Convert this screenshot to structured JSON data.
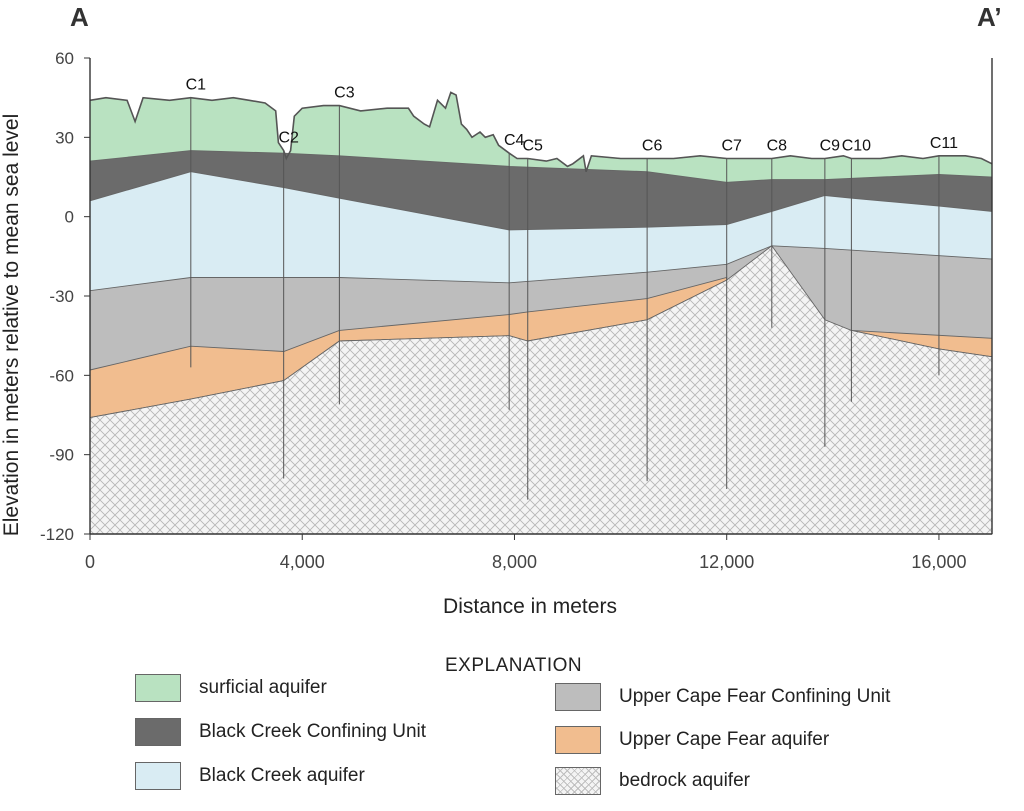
{
  "chart_data": {
    "type": "cross-section",
    "title_left": "A",
    "title_right": "A’",
    "xlabel": "Distance in meters",
    "ylabel": "Elevation in meters relative to mean sea level",
    "xlim": [
      0,
      17000
    ],
    "ylim": [
      -120,
      60
    ],
    "x_ticks": [
      {
        "value": 0,
        "label": "0"
      },
      {
        "value": 4000,
        "label": "4,000"
      },
      {
        "value": 8000,
        "label": "8,000"
      },
      {
        "value": 12000,
        "label": "12,000"
      },
      {
        "value": 16000,
        "label": "16,000"
      }
    ],
    "y_ticks": [
      {
        "value": 60,
        "label": "60"
      },
      {
        "value": 30,
        "label": "30"
      },
      {
        "value": 0,
        "label": "0"
      },
      {
        "value": -30,
        "label": "-30"
      },
      {
        "value": -60,
        "label": "-60"
      },
      {
        "value": -90,
        "label": "-90"
      },
      {
        "value": -120,
        "label": "-120"
      }
    ],
    "wells": [
      {
        "name": "C1",
        "x": 1900,
        "bottom": -57
      },
      {
        "name": "C2",
        "x": 3650,
        "bottom": -99
      },
      {
        "name": "C3",
        "x": 4700,
        "bottom": -71
      },
      {
        "name": "C4",
        "x": 7900,
        "bottom": -73
      },
      {
        "name": "C5",
        "x": 8250,
        "bottom": -107
      },
      {
        "name": "C6",
        "x": 10500,
        "bottom": -100
      },
      {
        "name": "C7",
        "x": 12000,
        "bottom": -103
      },
      {
        "name": "C8",
        "x": 12850,
        "bottom": -42
      },
      {
        "name": "C9",
        "x": 13850,
        "bottom": -87
      },
      {
        "name": "C10",
        "x": 14350,
        "bottom": -70
      },
      {
        "name": "C11",
        "x": 16000,
        "bottom": -60
      }
    ],
    "surface_profile": [
      [
        0,
        44
      ],
      [
        300,
        45
      ],
      [
        700,
        44
      ],
      [
        850,
        36
      ],
      [
        1000,
        45
      ],
      [
        1500,
        44
      ],
      [
        1900,
        45
      ],
      [
        2300,
        44
      ],
      [
        2700,
        45
      ],
      [
        3000,
        44
      ],
      [
        3300,
        43
      ],
      [
        3500,
        40
      ],
      [
        3550,
        28
      ],
      [
        3650,
        25
      ],
      [
        3700,
        22
      ],
      [
        3780,
        25
      ],
      [
        3850,
        38
      ],
      [
        4000,
        41
      ],
      [
        4400,
        42
      ],
      [
        4700,
        42
      ],
      [
        5100,
        40
      ],
      [
        5600,
        41
      ],
      [
        6000,
        41
      ],
      [
        6100,
        38
      ],
      [
        6300,
        35
      ],
      [
        6400,
        34
      ],
      [
        6550,
        44
      ],
      [
        6700,
        41
      ],
      [
        6800,
        47
      ],
      [
        6900,
        46
      ],
      [
        7000,
        35
      ],
      [
        7100,
        33
      ],
      [
        7200,
        30
      ],
      [
        7350,
        32
      ],
      [
        7450,
        30
      ],
      [
        7600,
        31
      ],
      [
        7700,
        27
      ],
      [
        7900,
        24
      ],
      [
        8050,
        22
      ],
      [
        8250,
        22
      ],
      [
        8600,
        21
      ],
      [
        8800,
        22
      ],
      [
        9000,
        19
      ],
      [
        9100,
        20
      ],
      [
        9300,
        23
      ],
      [
        9350,
        17
      ],
      [
        9450,
        23
      ],
      [
        10000,
        22
      ],
      [
        10500,
        22
      ],
      [
        11000,
        22
      ],
      [
        11500,
        23
      ],
      [
        12000,
        22
      ],
      [
        12400,
        22
      ],
      [
        12850,
        22
      ],
      [
        13200,
        23
      ],
      [
        13600,
        22
      ],
      [
        13850,
        22
      ],
      [
        14200,
        23
      ],
      [
        14350,
        22
      ],
      [
        14900,
        22
      ],
      [
        15300,
        23
      ],
      [
        15700,
        22
      ],
      [
        16000,
        23
      ],
      [
        16500,
        23
      ],
      [
        16800,
        22
      ],
      [
        17000,
        20
      ]
    ],
    "layer_tops": {
      "black_creek_confining": [
        [
          0,
          21
        ],
        [
          1900,
          25
        ],
        [
          3650,
          24
        ],
        [
          4700,
          23
        ],
        [
          7900,
          19
        ],
        [
          10500,
          17
        ],
        [
          12000,
          13
        ],
        [
          12850,
          14
        ],
        [
          13850,
          14
        ],
        [
          16000,
          16
        ],
        [
          17000,
          15
        ]
      ],
      "black_creek_aquifer": [
        [
          0,
          6
        ],
        [
          1900,
          17
        ],
        [
          3650,
          11
        ],
        [
          4700,
          7
        ],
        [
          7900,
          -5
        ],
        [
          10500,
          -4
        ],
        [
          12000,
          -3
        ],
        [
          12850,
          2
        ],
        [
          13850,
          8
        ],
        [
          14350,
          7
        ],
        [
          16000,
          4
        ],
        [
          17000,
          2
        ]
      ],
      "upper_cape_fear_confining": [
        [
          0,
          -28
        ],
        [
          1900,
          -23
        ],
        [
          3650,
          -23
        ],
        [
          4700,
          -23
        ],
        [
          7900,
          -25
        ],
        [
          10500,
          -21
        ],
        [
          12000,
          -18
        ],
        [
          12850,
          -11
        ],
        [
          13850,
          -12
        ],
        [
          17000,
          -16
        ]
      ],
      "upper_cape_fear_aquifer": [
        [
          0,
          -58
        ],
        [
          1900,
          -49
        ],
        [
          3650,
          -51
        ],
        [
          4700,
          -43
        ],
        [
          7900,
          -37
        ],
        [
          8250,
          -36
        ],
        [
          10500,
          -31
        ],
        [
          12000,
          -23
        ]
      ],
      "upper_cape_fear_aquifer_east": [
        [
          14350,
          -43
        ],
        [
          17000,
          -46
        ]
      ],
      "bedrock": [
        [
          0,
          -76
        ],
        [
          1900,
          -69
        ],
        [
          3650,
          -62
        ],
        [
          4700,
          -47
        ],
        [
          7900,
          -45
        ],
        [
          8250,
          -47
        ],
        [
          10500,
          -39
        ],
        [
          12000,
          -24
        ],
        [
          12850,
          -11
        ],
        [
          13850,
          -39
        ],
        [
          14350,
          -43
        ],
        [
          16000,
          -50
        ],
        [
          17000,
          -53
        ]
      ]
    }
  },
  "legend": {
    "title": "EXPLANATION",
    "items": [
      {
        "label": "surficial aquifer",
        "color": "#b9e2c1"
      },
      {
        "label": "Black Creek Confining Unit",
        "color": "#6b6b6b"
      },
      {
        "label": "Black Creek aquifer",
        "color": "#d9ecf3"
      },
      {
        "label": "Upper Cape Fear Confining Unit",
        "color": "#bdbdbd"
      },
      {
        "label": "Upper Cape Fear aquifer",
        "color": "#f1bd8f"
      },
      {
        "label": "bedrock aquifer",
        "color": "#f2f2f2"
      }
    ]
  }
}
